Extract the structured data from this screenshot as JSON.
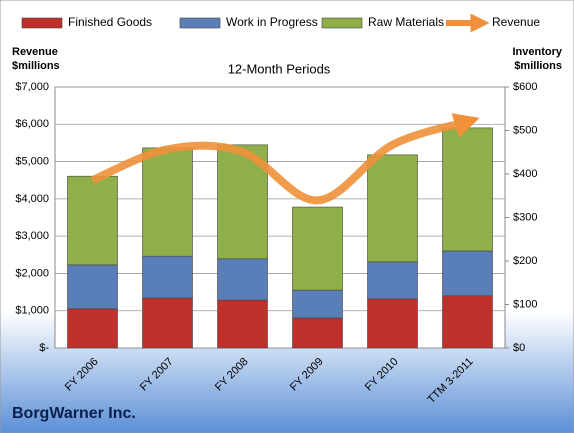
{
  "chart_data": {
    "type": "bar",
    "title": "12-Month Periods",
    "footer": "BorgWarner Inc.",
    "ylabel": [
      "Revenue",
      "$millions"
    ],
    "y2label": [
      "Inventory",
      "$millions"
    ],
    "categories": [
      "FY 2006",
      "FY 2007",
      "FY 2008",
      "FY 2009",
      "FY 2010",
      "TTM 3-2011"
    ],
    "series": [
      {
        "name": "Finished Goods",
        "type": "bar",
        "axis": "y2",
        "color": "#c0302b",
        "values": [
          90,
          115,
          110,
          69,
          113,
          120
        ]
      },
      {
        "name": "Work in Progress",
        "type": "bar",
        "axis": "y2",
        "color": "#5a7fb8",
        "values": [
          101,
          96,
          95,
          64,
          85,
          103
        ]
      },
      {
        "name": "Raw Materials",
        "type": "bar",
        "axis": "y2",
        "color": "#8faf4a",
        "values": [
          204,
          249,
          262,
          191,
          246,
          283
        ]
      },
      {
        "name": "Revenue",
        "type": "line",
        "axis": "y",
        "color": "#f0913a",
        "values": [
          4500,
          5330,
          5260,
          3960,
          5450,
          6070
        ]
      }
    ],
    "ylim": [
      0,
      7000
    ],
    "yticks": [
      {
        "value": 0,
        "label": "$-"
      },
      {
        "value": 1000,
        "label": "$1,000"
      },
      {
        "value": 2000,
        "label": "$2,000"
      },
      {
        "value": 3000,
        "label": "$3,000"
      },
      {
        "value": 4000,
        "label": "$4,000"
      },
      {
        "value": 5000,
        "label": "$5,000"
      },
      {
        "value": 6000,
        "label": "$6,000"
      },
      {
        "value": 7000,
        "label": "$7,000"
      }
    ],
    "y2lim": [
      0,
      600
    ],
    "y2ticks": [
      {
        "value": 0,
        "label": "$0"
      },
      {
        "value": 100,
        "label": "$100"
      },
      {
        "value": 200,
        "label": "$200"
      },
      {
        "value": 300,
        "label": "$300"
      },
      {
        "value": 400,
        "label": "$400"
      },
      {
        "value": 500,
        "label": "$500"
      },
      {
        "value": 600,
        "label": "$600"
      }
    ],
    "grid": true
  }
}
